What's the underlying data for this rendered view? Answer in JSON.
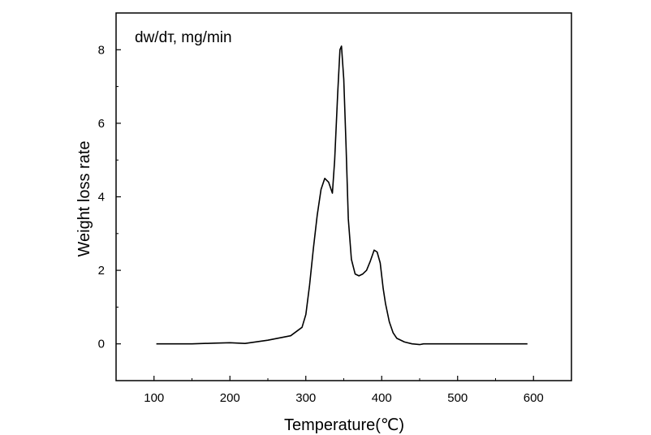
{
  "chart_data": {
    "type": "line",
    "title": "",
    "annotation": "dw/dт,  mg/min",
    "xlabel": "Temperature(℃)",
    "ylabel": "Weight loss rate",
    "xlim": [
      50,
      650
    ],
    "ylim": [
      -1,
      9
    ],
    "xticks": [
      100,
      200,
      300,
      400,
      500,
      600
    ],
    "yticks": [
      0,
      2,
      4,
      6,
      8
    ],
    "grid": false,
    "legend": "none",
    "line_color": "#000000",
    "series": [
      {
        "x": [
          103,
          150,
          180,
          200,
          220,
          250,
          280,
          295,
          300,
          305,
          310,
          315,
          320,
          325,
          330,
          335,
          338,
          342,
          345,
          347,
          350,
          353,
          356,
          360,
          365,
          370,
          375,
          380,
          385,
          390,
          394,
          398,
          402,
          405,
          410,
          415,
          420,
          430,
          440,
          450,
          455,
          470,
          500,
          550,
          592
        ],
        "y": [
          0,
          0,
          0.02,
          0.03,
          0.01,
          0.1,
          0.22,
          0.45,
          0.8,
          1.6,
          2.6,
          3.5,
          4.2,
          4.5,
          4.4,
          4.1,
          5.0,
          6.8,
          8.0,
          8.1,
          7.2,
          5.4,
          3.4,
          2.3,
          1.9,
          1.85,
          1.9,
          2.0,
          2.25,
          2.55,
          2.5,
          2.2,
          1.5,
          1.1,
          0.6,
          0.3,
          0.15,
          0.05,
          0.0,
          -0.02,
          0,
          0,
          0,
          0,
          0
        ]
      }
    ]
  }
}
